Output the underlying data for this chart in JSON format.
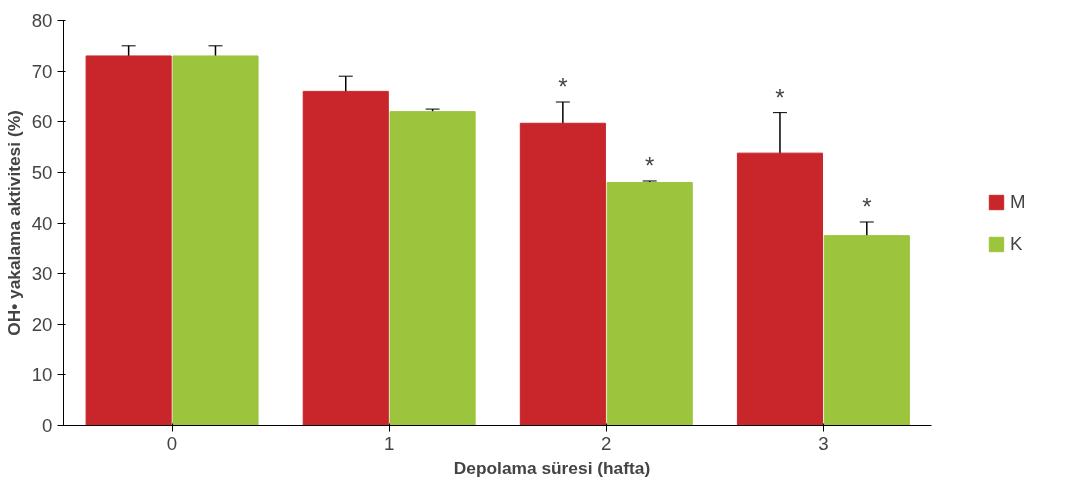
{
  "chart_data": {
    "type": "bar",
    "xlabel": "Depolama süresi (hafta)",
    "ylabel": "OH• yakalama aktivitesi (%)",
    "categories": [
      "0",
      "1",
      "2",
      "3"
    ],
    "series": [
      {
        "name": "M",
        "color": "#c8262b",
        "values": [
          73,
          66,
          59.7,
          53.8
        ],
        "errors": [
          2,
          3,
          4.2,
          8
        ]
      },
      {
        "name": "K",
        "color": "#9cc43c",
        "values": [
          73,
          62,
          48,
          37.5
        ],
        "errors": [
          2,
          0.5,
          0.3,
          2.7
        ]
      }
    ],
    "ylim": [
      0,
      80
    ],
    "yticks": [
      0,
      10,
      20,
      30,
      40,
      50,
      60,
      70,
      80
    ],
    "grid": false,
    "legend": "right",
    "annotations": [
      {
        "text": "*",
        "x": "2",
        "y": 59.7
      },
      {
        "text": "*",
        "x": "2",
        "y": 48
      },
      {
        "text": "*",
        "x": "3",
        "y": 53.8
      },
      {
        "text": "*",
        "x": "3",
        "y": 37.5
      }
    ]
  }
}
